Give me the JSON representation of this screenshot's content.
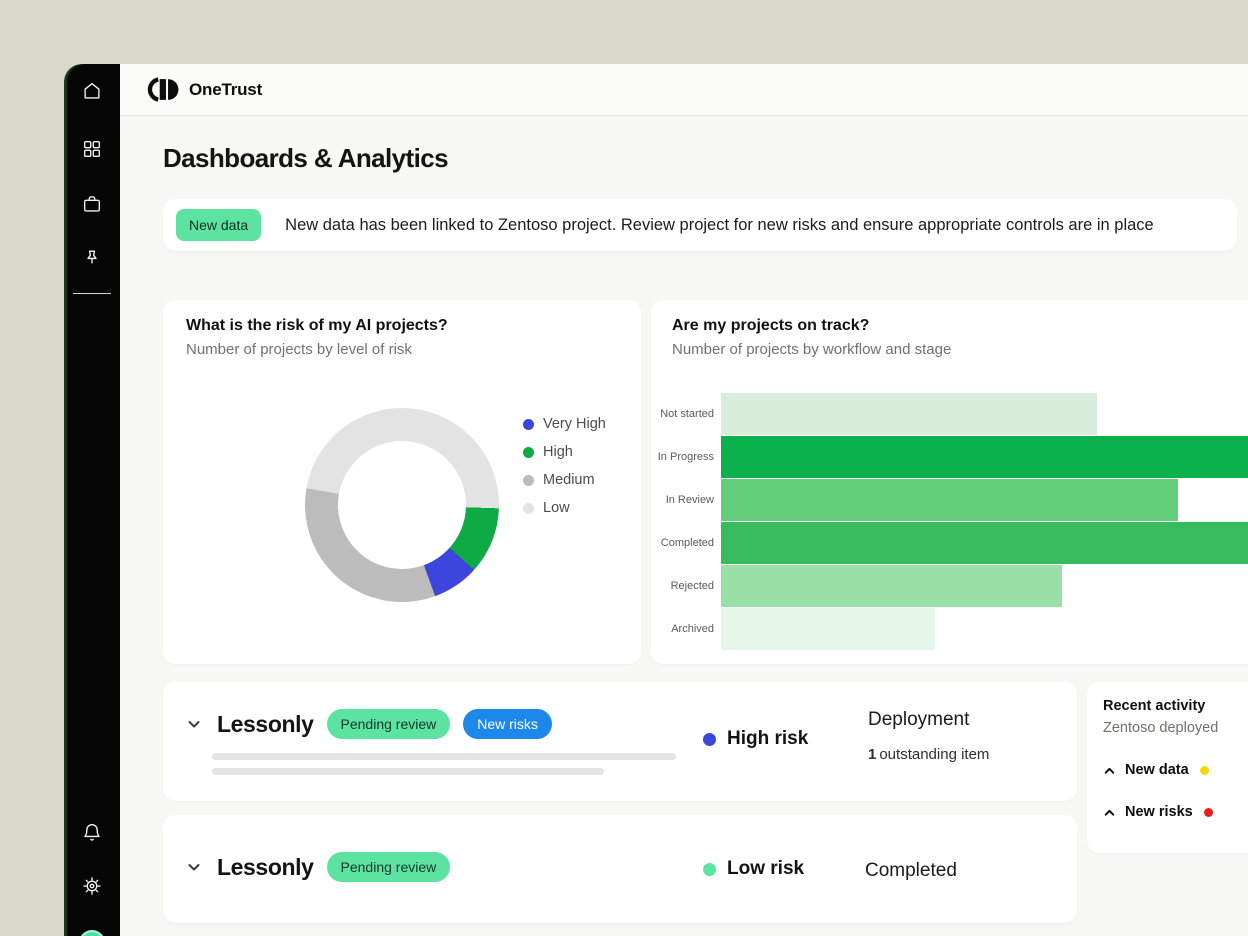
{
  "app": {
    "brand": "OneTrust"
  },
  "page": {
    "title": "Dashboards & Analytics"
  },
  "banner": {
    "badge": "New data",
    "message": "New data has been linked to Zentoso project. Review project for new risks and ensure appropriate controls are in place"
  },
  "sidebar": {
    "top_icons": [
      "home",
      "apps-grid",
      "briefcase",
      "pin"
    ],
    "bottom_icons": [
      "bell",
      "gear"
    ],
    "avatar": "user-avatar"
  },
  "colors": {
    "canvas": "#d9dacb",
    "sidebar": "#060606",
    "accent_green": "#5ce3a1",
    "accent_blue": "#1e87ea",
    "brand_green": "#0cab43"
  },
  "chart_data": [
    {
      "type": "pie",
      "donut": true,
      "title": "What is the risk of my AI projects?",
      "subtitle": "Number of projects by level of risk",
      "legend_position": "right",
      "segments": [
        {
          "label": "Very High",
          "pct_est": 8,
          "color": "#3c46dd"
        },
        {
          "label": "High",
          "pct_est": 11,
          "color": "#0cab43"
        },
        {
          "label": "Medium",
          "pct_est": 33,
          "color": "#bcbcbc"
        },
        {
          "label": "Low",
          "pct_est": 48,
          "color": "#e3e3e3"
        }
      ],
      "start_deg": 92,
      "draw_segments": [
        {
          "label": "High",
          "deg": 40,
          "color": "#0cab43"
        },
        {
          "label": "Very High",
          "deg": 28,
          "color": "#3c46dd"
        },
        {
          "label": "Medium",
          "deg": 120,
          "color": "#bcbcbc"
        },
        {
          "label": "Low",
          "deg": 172,
          "color": "#e3e3e3"
        }
      ],
      "note": "no numeric labels shown; percentages estimated from arc angles"
    },
    {
      "type": "bar",
      "orientation": "horizontal",
      "title": "Are my projects on track?",
      "subtitle": "Number of projects by workflow and stage",
      "categories": [
        "Not started",
        "In Progress",
        "In Review",
        "Completed",
        "Rejected",
        "Archived"
      ],
      "values_rel_pct": [
        65,
        100,
        79,
        100,
        59,
        37
      ],
      "bar_colors": [
        "#d8eedb",
        "#0bb14a",
        "#63cf7b",
        "#37bc5b",
        "#99dfa6",
        "#e6f5e9"
      ],
      "grid": false,
      "note": "axis unlabeled; values are relative bar lengths, In Progress and Completed bars run past the right edge of the viewport"
    }
  ],
  "projects": [
    {
      "name": "Lessonly",
      "pills": [
        {
          "label": "Pending review",
          "style": "green"
        },
        {
          "label": "New risks",
          "style": "blue"
        }
      ],
      "risk": {
        "label": "High risk",
        "dot_color": "#3c46dd"
      },
      "stage": {
        "label": "Deployment",
        "detail_count": "1",
        "detail_text": "outstanding item"
      }
    },
    {
      "name": "Lessonly",
      "pills": [
        {
          "label": "Pending review",
          "style": "green"
        }
      ],
      "risk": {
        "label": "Low risk",
        "dot_color": "#5ce3a1"
      },
      "stage": {
        "label": "Completed"
      }
    }
  ],
  "recent_activity": {
    "title": "Recent activity",
    "subtitle": "Zentoso deployed",
    "items": [
      {
        "label": "New data",
        "dot_color": "#f6d60b"
      },
      {
        "label": "New risks",
        "dot_color": "#ec1c1c"
      }
    ]
  }
}
